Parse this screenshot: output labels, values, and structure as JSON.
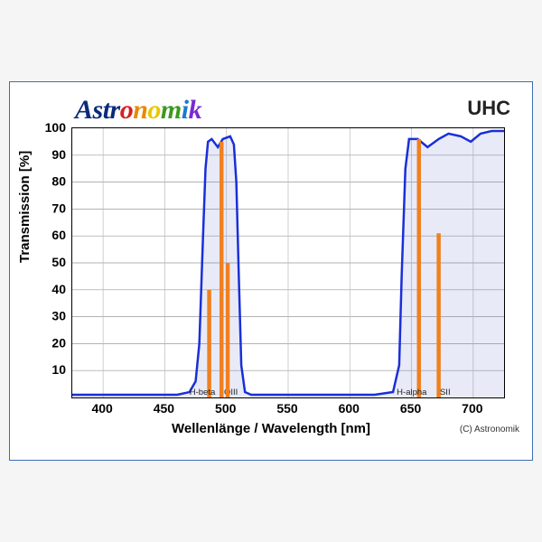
{
  "logo": {
    "text": "Astronomik",
    "colors": [
      "#0a2a7a",
      "#0a2a7a",
      "#0a2a7a",
      "#0a2a7a",
      "#d62020",
      "#e88a00",
      "#e8c800",
      "#3a9a20",
      "#1a7ad0",
      "#7a2ad0"
    ],
    "fontsize": 30
  },
  "product_label": "UHC",
  "ylabel": "Transmission [%]",
  "xlabel": "Wellenlänge / Wavelength [nm]",
  "copyright": "(C) Astronomik",
  "chart": {
    "type": "line-area-with-bars",
    "xlim": [
      375,
      725
    ],
    "ylim": [
      0,
      100
    ],
    "xticks": [
      400,
      450,
      500,
      550,
      600,
      650,
      700
    ],
    "yticks": [
      0,
      10,
      20,
      30,
      40,
      50,
      60,
      70,
      80,
      90,
      100
    ],
    "grid_color_h": "#999999",
    "grid_color_v": "#bbbbbb",
    "background_color": "#ffffff",
    "curve_stroke": "#1a2fd8",
    "curve_fill": "rgba(100,120,200,0.15)",
    "curve_width": 2.5,
    "curve_points": [
      [
        375,
        1
      ],
      [
        420,
        1
      ],
      [
        440,
        1
      ],
      [
        460,
        1
      ],
      [
        470,
        2
      ],
      [
        475,
        6
      ],
      [
        478,
        20
      ],
      [
        481,
        60
      ],
      [
        483,
        85
      ],
      [
        485,
        95
      ],
      [
        488,
        96
      ],
      [
        493,
        93
      ],
      [
        497,
        96
      ],
      [
        503,
        97
      ],
      [
        506,
        94
      ],
      [
        508,
        80
      ],
      [
        510,
        45
      ],
      [
        512,
        12
      ],
      [
        515,
        2
      ],
      [
        520,
        1
      ],
      [
        560,
        1
      ],
      [
        600,
        1
      ],
      [
        620,
        1
      ],
      [
        635,
        2
      ],
      [
        640,
        12
      ],
      [
        642,
        45
      ],
      [
        645,
        85
      ],
      [
        648,
        96
      ],
      [
        655,
        96
      ],
      [
        663,
        93
      ],
      [
        672,
        96
      ],
      [
        680,
        98
      ],
      [
        690,
        97
      ],
      [
        698,
        95
      ],
      [
        706,
        98
      ],
      [
        715,
        99
      ],
      [
        725,
        99
      ]
    ],
    "emission_lines": [
      {
        "label": "H-beta",
        "x": 486,
        "height": 40,
        "label_x": 470
      },
      {
        "label": "OIII",
        "x": 496,
        "height": 95,
        "label_x": 498
      },
      {
        "label": "",
        "x": 501,
        "height": 50,
        "label_x": null
      },
      {
        "label": "H-alpha",
        "x": 656,
        "height": 96,
        "label_x": 638
      },
      {
        "label": "SII",
        "x": 672,
        "height": 61,
        "label_x": 673
      }
    ],
    "emission_color": "#f08020",
    "emission_width": 4.5,
    "emission_label_fontsize": 9.5
  }
}
